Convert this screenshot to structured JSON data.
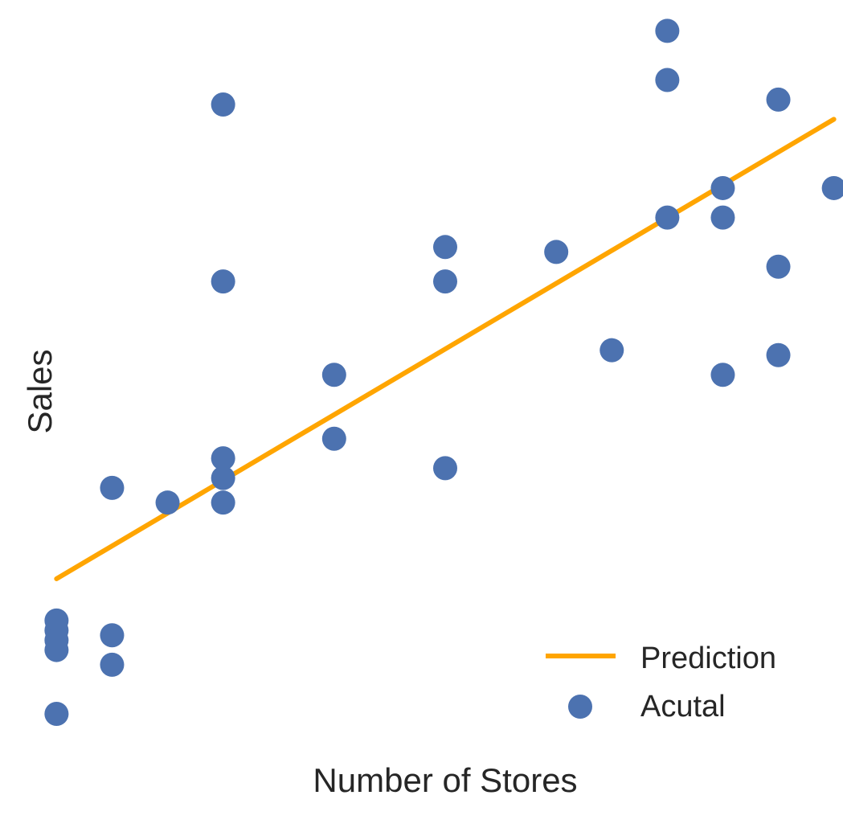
{
  "chart_data": {
    "type": "scatter",
    "xlabel": "Number of Stores",
    "ylabel": "Sales",
    "xlim": [
      0.85,
      15.15
    ],
    "ylim": [
      0.75,
      15.8
    ],
    "grid": false,
    "legend_position": "bottom-right",
    "series": [
      {
        "name": "Prediction",
        "kind": "line",
        "color": "#FFA500",
        "x": [
          1,
          15
        ],
        "y": [
          4.35,
          13.7
        ]
      },
      {
        "name": "Acutal",
        "kind": "scatter",
        "color": "#4C72B0",
        "points": [
          {
            "x": 1,
            "y": 3.5
          },
          {
            "x": 1,
            "y": 3.3
          },
          {
            "x": 1,
            "y": 3.1
          },
          {
            "x": 1,
            "y": 2.9
          },
          {
            "x": 1,
            "y": 1.6
          },
          {
            "x": 2,
            "y": 6.2
          },
          {
            "x": 2,
            "y": 3.2
          },
          {
            "x": 2,
            "y": 2.6
          },
          {
            "x": 3,
            "y": 5.9
          },
          {
            "x": 4,
            "y": 14.0
          },
          {
            "x": 4,
            "y": 10.4
          },
          {
            "x": 4,
            "y": 6.8
          },
          {
            "x": 4,
            "y": 6.4
          },
          {
            "x": 4,
            "y": 5.9
          },
          {
            "x": 6,
            "y": 8.5
          },
          {
            "x": 6,
            "y": 7.2
          },
          {
            "x": 8,
            "y": 11.1
          },
          {
            "x": 8,
            "y": 10.4
          },
          {
            "x": 8,
            "y": 6.6
          },
          {
            "x": 10,
            "y": 11.0
          },
          {
            "x": 11,
            "y": 9.0
          },
          {
            "x": 12,
            "y": 15.5
          },
          {
            "x": 12,
            "y": 14.5
          },
          {
            "x": 12,
            "y": 11.7
          },
          {
            "x": 13,
            "y": 12.3
          },
          {
            "x": 13,
            "y": 11.7
          },
          {
            "x": 13,
            "y": 8.5
          },
          {
            "x": 14,
            "y": 14.1
          },
          {
            "x": 14,
            "y": 10.7
          },
          {
            "x": 14,
            "y": 8.9
          },
          {
            "x": 15,
            "y": 12.3
          }
        ]
      }
    ]
  }
}
